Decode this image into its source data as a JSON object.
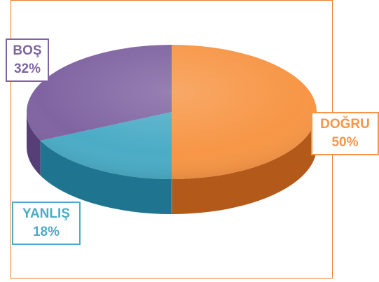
{
  "chart_data": {
    "type": "pie",
    "style": "3d",
    "slices": [
      {
        "label": "DOĞRU",
        "value": 50,
        "value_text": "50%",
        "color": "#f79646",
        "side_color": "#b35a1b",
        "label_border": "#f79646"
      },
      {
        "label": "YANLIŞ",
        "value": 18,
        "value_text": "18%",
        "color": "#4bacc6",
        "side_color": "#1f7590",
        "label_border": "#4bacc6"
      },
      {
        "label": "BOŞ",
        "value": 32,
        "value_text": "32%",
        "color": "#8064a2",
        "side_color": "#563f76",
        "label_border": "#8064a2"
      }
    ],
    "frame_color": "#ed7d31"
  }
}
